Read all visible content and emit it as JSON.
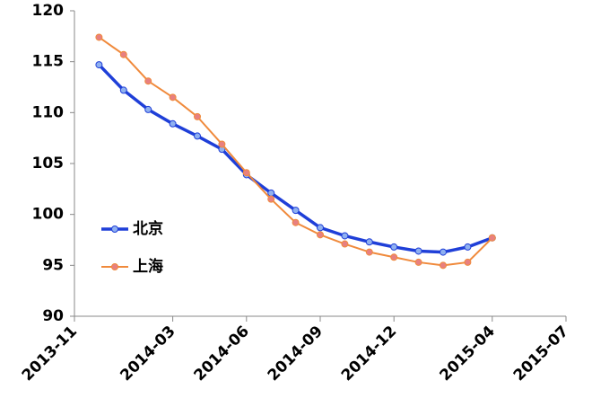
{
  "chart_data": {
    "type": "line",
    "x": [
      "2013-12",
      "2014-01",
      "2014-02",
      "2014-03",
      "2014-04",
      "2014-05",
      "2014-06",
      "2014-07",
      "2014-08",
      "2014-09",
      "2014-10",
      "2014-11",
      "2014-12",
      "2015-01",
      "2015-02",
      "2015-03",
      "2015-04"
    ],
    "series": [
      {
        "name": "北京",
        "color": "#1f3fd8",
        "marker_color": "#8fb0f0",
        "values": [
          114.7,
          112.2,
          110.3,
          108.9,
          107.7,
          106.4,
          103.9,
          102.1,
          100.4,
          98.7,
          97.9,
          97.3,
          96.8,
          96.4,
          96.3,
          96.8,
          97.7
        ]
      },
      {
        "name": "上海",
        "color": "#f08a3c",
        "marker_color": "#e88080",
        "values": [
          117.4,
          115.7,
          113.1,
          111.5,
          109.6,
          106.9,
          104.1,
          101.5,
          99.2,
          98.0,
          97.1,
          96.3,
          95.8,
          95.3,
          95.0,
          95.3,
          97.7
        ]
      }
    ],
    "xlim": [
      "2013-11",
      "2015-07"
    ],
    "xticks": [
      "2013-11",
      "2014-03",
      "2014-06",
      "2014-09",
      "2014-12",
      "2015-04",
      "2015-07"
    ],
    "ylim": [
      90,
      120
    ],
    "yticks": [
      90,
      95,
      100,
      105,
      110,
      115,
      120
    ],
    "grid": false,
    "legend": "left"
  }
}
